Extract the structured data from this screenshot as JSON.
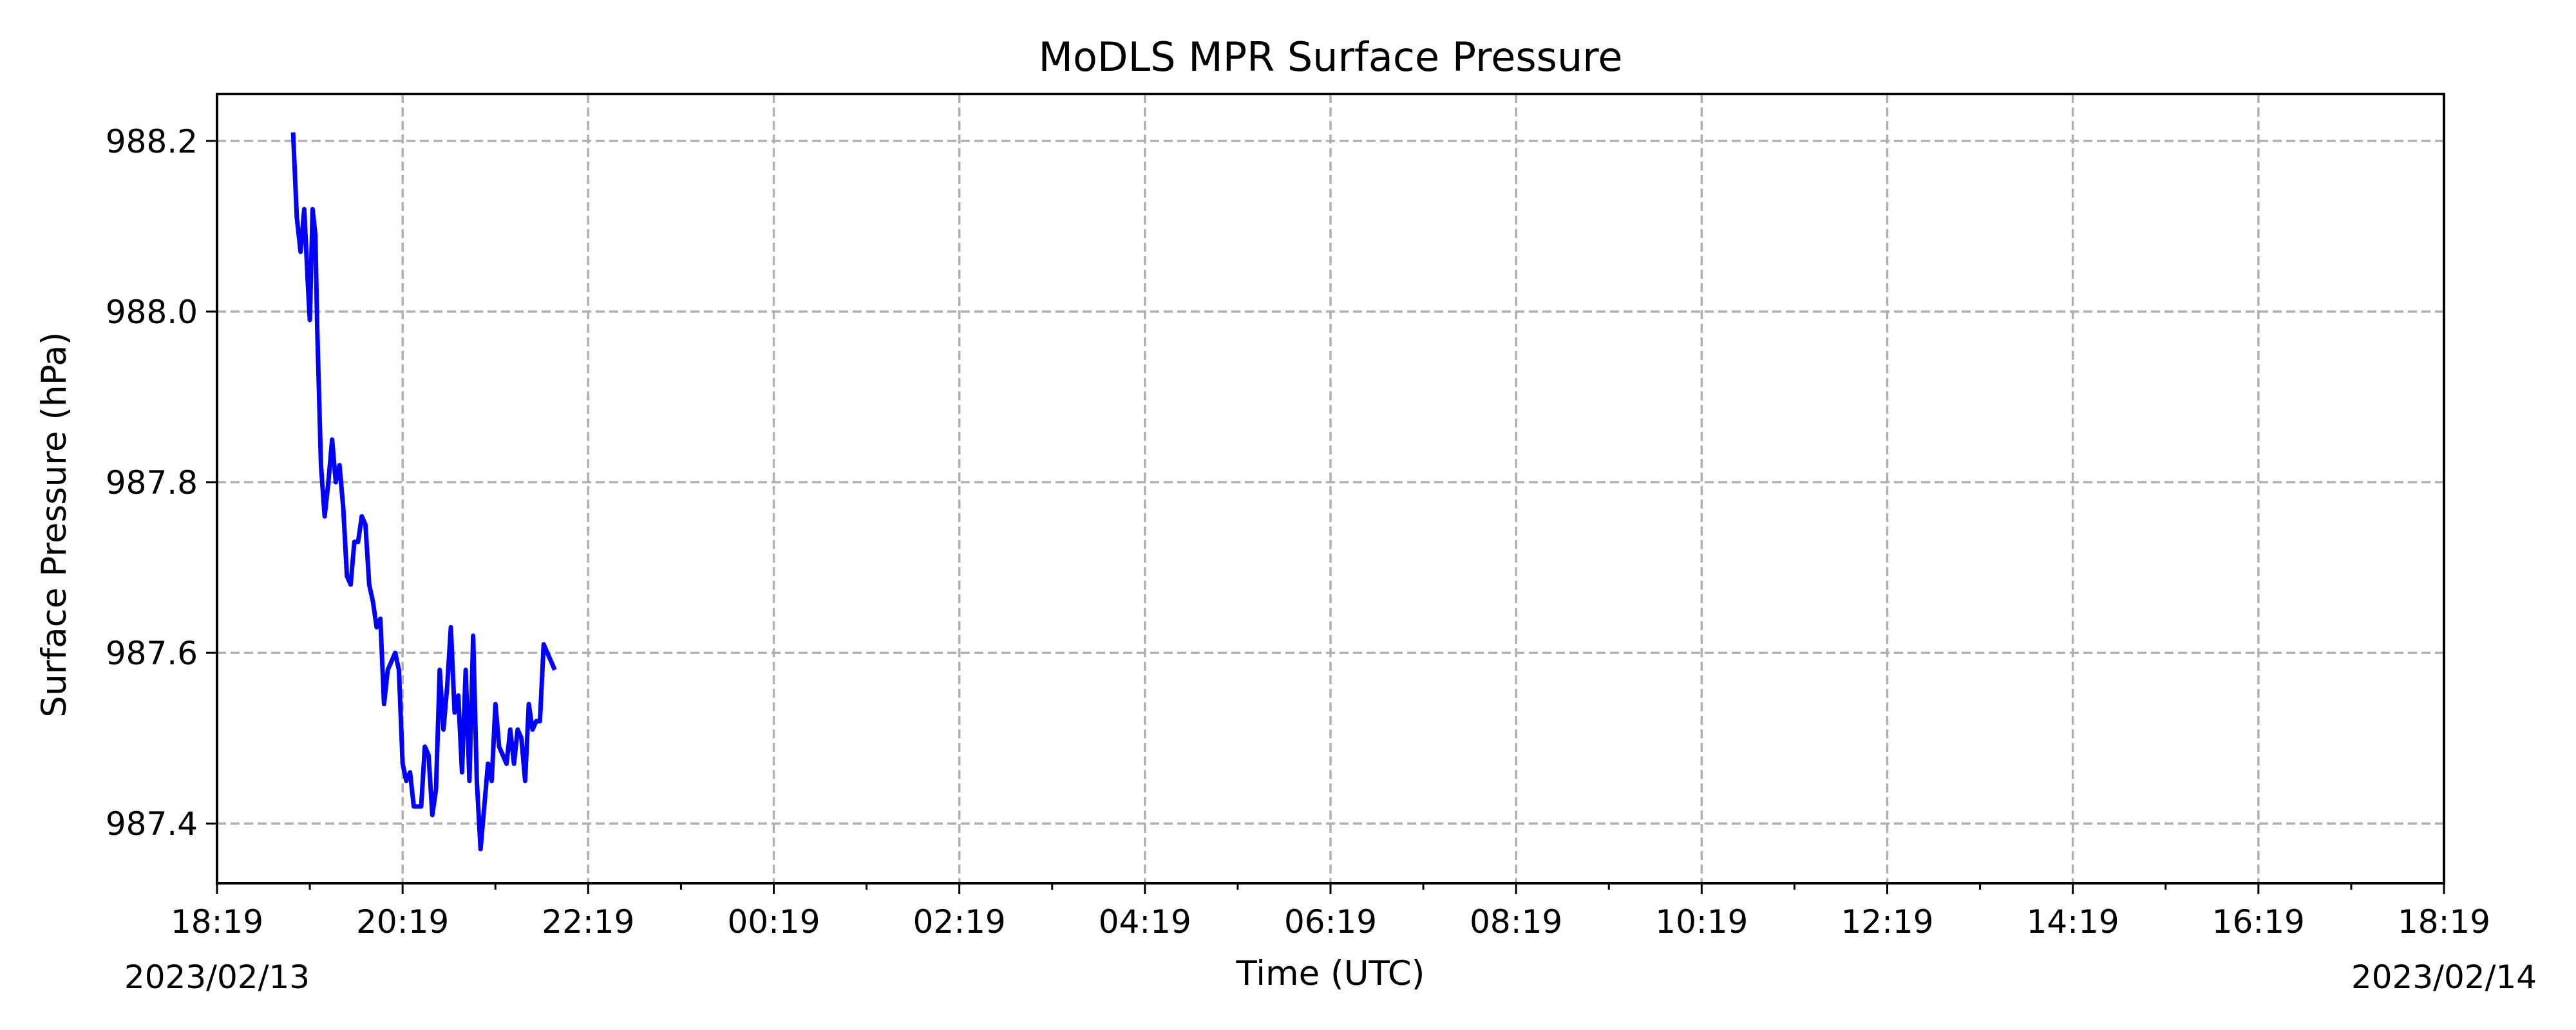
{
  "chart_data": {
    "type": "line",
    "title": "MoDLS MPR Surface Pressure",
    "xlabel": "Time (UTC)",
    "ylabel": "Surface Pressure (hPa)",
    "x_unit": "hours after 2023/02/13 18:19 UTC",
    "xlim": [
      0,
      24
    ],
    "ylim": [
      987.33,
      988.255
    ],
    "grid": true,
    "x_ticks": [
      {
        "value": 0,
        "label": "18:19",
        "date": "2023/02/13"
      },
      {
        "value": 2,
        "label": "20:19"
      },
      {
        "value": 4,
        "label": "22:19"
      },
      {
        "value": 6,
        "label": "00:19"
      },
      {
        "value": 8,
        "label": "02:19"
      },
      {
        "value": 10,
        "label": "04:19"
      },
      {
        "value": 12,
        "label": "06:19"
      },
      {
        "value": 14,
        "label": "08:19"
      },
      {
        "value": 16,
        "label": "10:19"
      },
      {
        "value": 18,
        "label": "12:19"
      },
      {
        "value": 20,
        "label": "14:19"
      },
      {
        "value": 22,
        "label": "16:19"
      },
      {
        "value": 24,
        "label": "18:19",
        "date": "2023/02/14"
      }
    ],
    "y_ticks": [
      {
        "value": 987.4,
        "label": "987.4"
      },
      {
        "value": 987.6,
        "label": "987.6"
      },
      {
        "value": 987.8,
        "label": "987.8"
      },
      {
        "value": 988.0,
        "label": "988.0"
      },
      {
        "value": 988.2,
        "label": "988.2"
      }
    ],
    "series": [
      {
        "color": "#0000ff",
        "x": [
          0.82,
          0.86,
          0.9,
          0.94,
          0.98,
          1.0,
          1.03,
          1.06,
          1.08,
          1.12,
          1.16,
          1.2,
          1.24,
          1.28,
          1.32,
          1.36,
          1.4,
          1.44,
          1.48,
          1.52,
          1.56,
          1.6,
          1.64,
          1.68,
          1.72,
          1.76,
          1.8,
          1.84,
          1.88,
          1.92,
          1.96,
          2.0,
          2.04,
          2.08,
          2.12,
          2.16,
          2.2,
          2.24,
          2.28,
          2.32,
          2.36,
          2.4,
          2.44,
          2.48,
          2.52,
          2.56,
          2.6,
          2.64,
          2.68,
          2.72,
          2.76,
          2.8,
          2.84,
          2.88,
          2.92,
          2.96,
          3.0,
          3.04,
          3.08,
          3.12,
          3.16,
          3.2,
          3.24,
          3.28,
          3.32,
          3.36,
          3.4,
          3.44,
          3.48,
          3.52,
          3.56,
          3.6,
          3.64
        ],
        "y": [
          988.21,
          988.11,
          988.07,
          988.12,
          988.03,
          987.99,
          988.12,
          988.09,
          987.98,
          987.82,
          987.76,
          987.8,
          987.85,
          987.8,
          987.82,
          987.77,
          987.69,
          987.68,
          987.73,
          987.73,
          987.76,
          987.75,
          987.68,
          987.66,
          987.63,
          987.64,
          987.54,
          987.58,
          987.59,
          987.6,
          987.58,
          987.47,
          987.45,
          987.46,
          987.42,
          987.42,
          987.42,
          987.49,
          987.48,
          987.41,
          987.44,
          987.58,
          987.51,
          987.56,
          987.63,
          987.53,
          987.55,
          987.46,
          987.58,
          987.45,
          987.62,
          987.45,
          987.37,
          987.42,
          987.47,
          987.45,
          987.54,
          987.49,
          987.48,
          987.47,
          987.51,
          987.47,
          987.51,
          987.5,
          987.45,
          987.54,
          987.51,
          987.52,
          987.52,
          987.61,
          987.6,
          987.59,
          987.58
        ]
      }
    ]
  }
}
